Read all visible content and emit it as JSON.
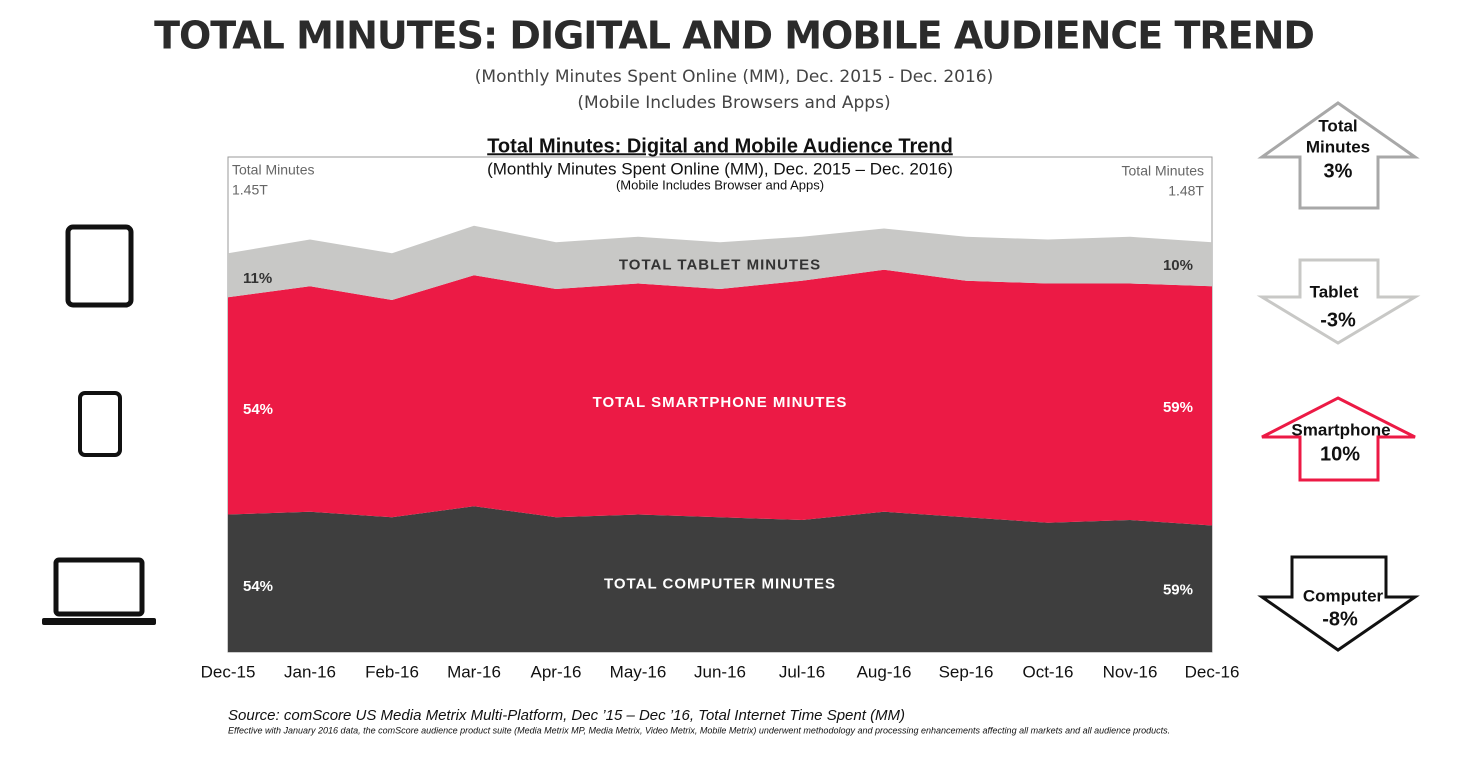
{
  "header": {
    "title": "TOTAL MINUTES: DIGITAL AND MOBILE AUDIENCE TREND",
    "subtitles": [
      "(Monthly Minutes Spent Online (MM), Dec. 2015 - Dec. 2016)",
      "(Mobile Includes Browsers and Apps)"
    ]
  },
  "chart_data": {
    "type": "stacked-area",
    "title": "Total Minutes:  Digital and Mobile Audience Trend",
    "subtitles": [
      "(Monthly Minutes Spent Online (MM), Dec. 2015 – Dec. 2016)",
      "(Mobile Includes Browser and Apps)"
    ],
    "annotations": {
      "left": [
        "Total Minutes",
        "1.45T"
      ],
      "right": [
        "Total Minutes",
        "1.48T"
      ]
    },
    "categories": [
      "Dec-15",
      "Jan-16",
      "Feb-16",
      "Mar-16",
      "Apr-16",
      "May-16",
      "Jun-16",
      "Jul-16",
      "Aug-16",
      "Sep-16",
      "Oct-16",
      "Nov-16",
      "Dec-16"
    ],
    "ylim": [
      0,
      1.8
    ],
    "series": [
      {
        "name": "TOTAL COMPUTER MINUTES",
        "color": "#3e3e3e",
        "start_label": "54%",
        "end_label": "59%",
        "values": [
          0.5,
          0.51,
          0.49,
          0.53,
          0.49,
          0.5,
          0.49,
          0.48,
          0.51,
          0.49,
          0.47,
          0.48,
          0.46
        ]
      },
      {
        "name": "TOTAL SMARTPHONE MINUTES",
        "color": "#ec1a45",
        "start_label": "54%",
        "end_label": "59%",
        "values": [
          0.79,
          0.82,
          0.79,
          0.84,
          0.83,
          0.84,
          0.83,
          0.87,
          0.88,
          0.86,
          0.87,
          0.86,
          0.87
        ]
      },
      {
        "name": "TOTAL TABLET MINUTES",
        "color": "#c8c8c6",
        "start_label": "11%",
        "end_label": "10%",
        "values": [
          0.16,
          0.17,
          0.17,
          0.18,
          0.17,
          0.17,
          0.17,
          0.16,
          0.15,
          0.16,
          0.16,
          0.17,
          0.16
        ]
      }
    ],
    "source": "Source: comScore US Media Metrix Multi-Platform, Dec ’15 – Dec ’16, Total Internet Time Spent (MM)",
    "footnote": "Effective with January 2016 data, the comScore audience product suite (Media Metrix MP, Media Metrix, Video Metrix, Mobile Metrix) underwent methodology and processing enhancements affecting all markets and all audience products."
  },
  "side_arrows": [
    {
      "label": [
        "Total",
        "Minutes"
      ],
      "change": "3%"
    },
    {
      "label": [
        "Tablet"
      ],
      "change": "-3%"
    },
    {
      "label": [
        "Smartphone"
      ],
      "change": "10%"
    },
    {
      "label": [
        "Computer"
      ],
      "change": "-8%"
    }
  ]
}
